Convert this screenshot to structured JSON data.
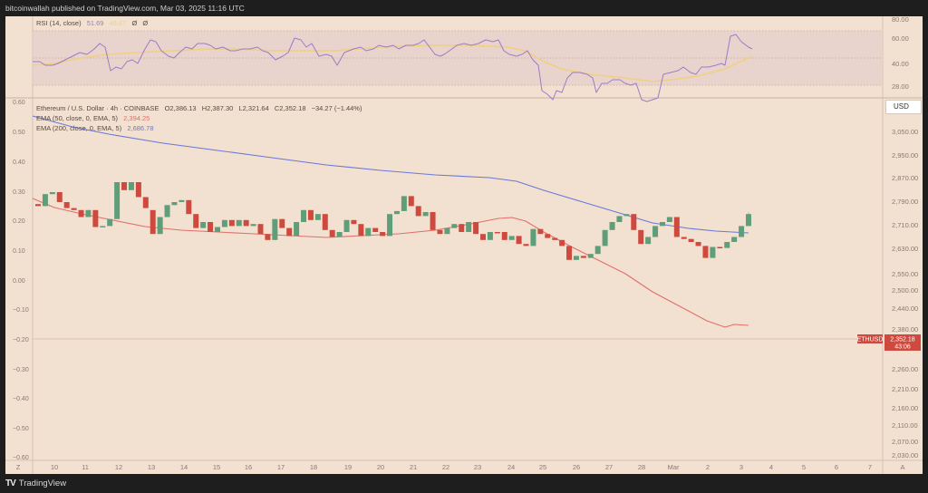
{
  "header": {
    "published_text": "bitcoinwallah published on TradingView.com, Mar 03, 2025 11:16 UTC"
  },
  "footer": {
    "logo_glyph": "TV",
    "brand": "TradingView"
  },
  "rsi_legend": {
    "label": "RSI (14, close)",
    "value": "51.69",
    "ma_value": "46.67",
    "icons": [
      "Ø",
      "Ø"
    ]
  },
  "main_legend": {
    "symbol": "Ethereum / U.S. Dollar · 4h · COINBASE",
    "open": "O2,386.13",
    "high": "H2,387.30",
    "low": "L2,321.64",
    "close": "C2,352.18",
    "change": "−34.27 (−1.44%)",
    "ema50_label": "EMA (50, close, 0, EMA, 5)",
    "ema50_value": "2,394.25",
    "ema200_label": "EMA (200, close, 0, EMA, 5)",
    "ema200_value": "2,686.78"
  },
  "price_axis": {
    "currency": "USD",
    "symbol_tag": "ETHUSD",
    "last_price": "2,352.18",
    "countdown": "43:06"
  },
  "colors": {
    "up": "#5f9e78",
    "down": "#cf4a3e",
    "ema50": "#e0706a",
    "ema200": "#6a78d8",
    "rsi": "#9b7cc8",
    "rsi_ma": "#f0d080",
    "background": "#f2e0d0",
    "rsi_band": "#e6d0cc"
  },
  "chart_data": [
    {
      "type": "line",
      "title": "RSI (14, close)",
      "y_ticks": [
        "80.00",
        "60.00",
        "40.00",
        "28.00"
      ],
      "band": [
        30,
        70
      ],
      "series": [
        {
          "name": "RSI",
          "last": 51.69
        },
        {
          "name": "RSI-based MA",
          "last": 46.67
        }
      ]
    },
    {
      "type": "candlestick",
      "title": "Ethereum / U.S. Dollar · 4h · COINBASE",
      "x_ticks": [
        "10",
        "11",
        "12",
        "13",
        "14",
        "15",
        "16",
        "17",
        "18",
        "19",
        "20",
        "21",
        "22",
        "23",
        "24",
        "25",
        "26",
        "27",
        "28",
        "Mar",
        "2",
        "3",
        "4",
        "5",
        "6",
        "7"
      ],
      "y_ticks_right": [
        "3,050.00",
        "2,950.00",
        "2,870.00",
        "2,790.00",
        "2,710.00",
        "2,630.00",
        "2,550.00",
        "2,500.00",
        "2,440.00",
        "2,380.00",
        "2,260.00",
        "2,210.00",
        "2,160.00",
        "2,110.00",
        "2,070.00",
        "2,030.00"
      ],
      "y_ticks_left": [
        "0.60",
        "0.50",
        "0.40",
        "0.30",
        "0.20",
        "0.10",
        "0.00",
        "−0.10",
        "−0.20",
        "−0.30",
        "−0.40",
        "−0.50",
        "−0.60"
      ],
      "last_ohlc": {
        "open": 2386.13,
        "high": 2387.3,
        "low": 2321.64,
        "close": 2352.18
      },
      "ema50_last": 2394.25,
      "ema200_last": 2686.78,
      "candles_yspace": [
        [
          268,
          265,
          278,
          266
        ],
        [
          266,
          262,
          300,
          278
        ],
        [
          278,
          270,
          305,
          280
        ],
        [
          280,
          268,
          290,
          270
        ],
        [
          270,
          262,
          272,
          264
        ],
        [
          264,
          255,
          268,
          262
        ],
        [
          262,
          252,
          266,
          255
        ],
        [
          255,
          248,
          262,
          262
        ],
        [
          262,
          244,
          264,
          245
        ],
        [
          245,
          238,
          252,
          246
        ],
        [
          246,
          236,
          268,
          253
        ],
        [
          253,
          270,
          292,
          290
        ],
        [
          290,
          282,
          300,
          282
        ],
        [
          282,
          278,
          295,
          290
        ],
        [
          290,
          275,
          290,
          275
        ],
        [
          275,
          262,
          280,
          264
        ],
        [
          262,
          236,
          270,
          238
        ],
        [
          238,
          234,
          258,
          255
        ],
        [
          255,
          248,
          285,
          267
        ],
        [
          267,
          262,
          275,
          270
        ],
        [
          270,
          265,
          275,
          272
        ],
        [
          272,
          258,
          275,
          258
        ],
        [
          258,
          242,
          264,
          244
        ],
        [
          244,
          240,
          256,
          250
        ],
        [
          250,
          238,
          252,
          240
        ],
        [
          240,
          238,
          246,
          245
        ],
        [
          245,
          238,
          258,
          252
        ],
        [
          252,
          240,
          258,
          246
        ],
        [
          246,
          242,
          262,
          252
        ],
        [
          252,
          244,
          258,
          246
        ],
        [
          246,
          246,
          254,
          248
        ],
        [
          248,
          235,
          260,
          238
        ],
        [
          238,
          230,
          242,
          232
        ],
        [
          232,
          235,
          254,
          253
        ],
        [
          253,
          244,
          254,
          244
        ],
        [
          244,
          234,
          252,
          236
        ],
        [
          236,
          244,
          256,
          250
        ],
        [
          250,
          256,
          268,
          262
        ],
        [
          262,
          250,
          265,
          252
        ],
        [
          252,
          255,
          262,
          258
        ],
        [
          258,
          240,
          262,
          242
        ],
        [
          242,
          224,
          248,
          235
        ],
        [
          235,
          238,
          246,
          240
        ],
        [
          240,
          238,
          254,
          252
        ],
        [
          252,
          240,
          254,
          248
        ],
        [
          248,
          234,
          262,
          236
        ],
        [
          236,
          238,
          248,
          244
        ],
        [
          244,
          238,
          262,
          240
        ],
        [
          240,
          236,
          256,
          236
        ],
        [
          236,
          250,
          260,
          258
        ],
        [
          258,
          245,
          265,
          261
        ],
        [
          261,
          268,
          278,
          276
        ],
        [
          276,
          265,
          282,
          266
        ],
        [
          266,
          250,
          276,
          256
        ],
        [
          256,
          258,
          264,
          260
        ],
        [
          260,
          240,
          262,
          242
        ],
        [
          242,
          234,
          248,
          238
        ],
        [
          238,
          240,
          250,
          244
        ],
        [
          244,
          240,
          248,
          248
        ],
        [
          248,
          240,
          256,
          240
        ],
        [
          240,
          248,
          252,
          250
        ],
        [
          250,
          234,
          256,
          238
        ],
        [
          238,
          230,
          240,
          232
        ],
        [
          232,
          236,
          244,
          240
        ],
        [
          240,
          226,
          248,
          240
        ],
        [
          240,
          228,
          244,
          232
        ],
        [
          232,
          228,
          240,
          236
        ],
        [
          236,
          226,
          242,
          228
        ],
        [
          228,
          210,
          246,
          226
        ],
        [
          226,
          220,
          260,
          243
        ],
        [
          243,
          236,
          254,
          238
        ],
        [
          238,
          232,
          244,
          234
        ],
        [
          234,
          230,
          240,
          232
        ],
        [
          232,
          224,
          238,
          226
        ],
        [
          226,
          210,
          232,
          212
        ],
        [
          212,
          214,
          222,
          216
        ],
        [
          216,
          212,
          222,
          214
        ],
        [
          214,
          216,
          222,
          218
        ],
        [
          218,
          222,
          230,
          226
        ],
        [
          226,
          240,
          245,
          242
        ],
        [
          242,
          244,
          270,
          250
        ],
        [
          250,
          252,
          262,
          256
        ],
        [
          256,
          254,
          262,
          258
        ],
        [
          258,
          240,
          260,
          242
        ],
        [
          242,
          225,
          246,
          228
        ],
        [
          228,
          229,
          238,
          235
        ],
        [
          235,
          240,
          248,
          246
        ],
        [
          246,
          248,
          252,
          250
        ],
        [
          250,
          248,
          258,
          255
        ],
        [
          255,
          232,
          262,
          235
        ],
        [
          235,
          230,
          250,
          233
        ],
        [
          233,
          228,
          242,
          230
        ],
        [
          230,
          224,
          236,
          226
        ],
        [
          226,
          212,
          228,
          214
        ],
        [
          214,
          222,
          230,
          225
        ],
        [
          225,
          212,
          228,
          224
        ],
        [
          224,
          226,
          232,
          230
        ],
        [
          230,
          232,
          236,
          235
        ],
        [
          235,
          240,
          248,
          246
        ],
        [
          246,
          260,
          262,
          258
        ]
      ]
    }
  ]
}
